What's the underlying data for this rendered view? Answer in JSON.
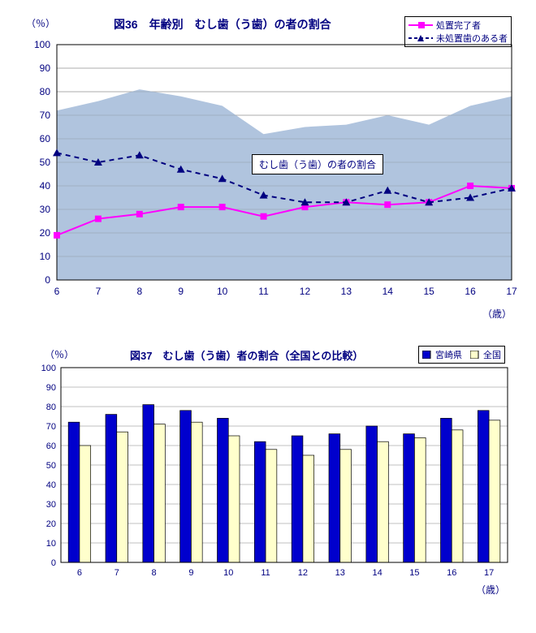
{
  "chart1": {
    "type": "area-line",
    "title": "図36　年齢別　むし歯（う歯）の者の割合",
    "y_label": "（％）",
    "x_label": "（歳）",
    "ylim": [
      0,
      100
    ],
    "ytick_step": 10,
    "categories": [
      6,
      7,
      8,
      9,
      10,
      11,
      12,
      13,
      14,
      15,
      16,
      17
    ],
    "area_values": [
      72,
      76,
      81,
      78,
      74,
      62,
      65,
      66,
      70,
      66,
      74,
      78
    ],
    "area_fill": "#b0c4de",
    "area_label": "むし歯（う歯）の者の割合",
    "series": [
      {
        "name": "処置完了者",
        "values": [
          19,
          26,
          28,
          31,
          31,
          27,
          31,
          33,
          32,
          33,
          40,
          39
        ],
        "color": "#ff00ff",
        "marker": "square",
        "line_style": "solid"
      },
      {
        "name": "未処置歯のある者",
        "values": [
          54,
          50,
          53,
          47,
          43,
          36,
          33,
          33,
          38,
          33,
          35,
          39
        ],
        "color": "#000080",
        "marker": "triangle",
        "line_style": "dash"
      }
    ],
    "grid_color": "#808080",
    "background_color": "#ffffff",
    "label_fontsize": 12,
    "title_fontsize": 14
  },
  "chart2": {
    "type": "bar",
    "title": "図37　むし歯（う歯）者の割合（全国との比較）",
    "y_label": "（％）",
    "x_label": "（歳）",
    "ylim": [
      0,
      100
    ],
    "ytick_step": 10,
    "categories": [
      6,
      7,
      8,
      9,
      10,
      11,
      12,
      13,
      14,
      15,
      16,
      17
    ],
    "series": [
      {
        "name": "宮崎県",
        "values": [
          72,
          76,
          81,
          78,
          74,
          62,
          65,
          66,
          70,
          66,
          74,
          78
        ],
        "color": "#0000cd"
      },
      {
        "name": "全国",
        "values": [
          60,
          67,
          71,
          72,
          65,
          58,
          55,
          58,
          62,
          64,
          68,
          73
        ],
        "color": "#ffffcc"
      }
    ],
    "grid_color": "#808080",
    "background_color": "#ffffff",
    "bar_border": "#000000",
    "label_fontsize": 12,
    "title_fontsize": 13
  }
}
